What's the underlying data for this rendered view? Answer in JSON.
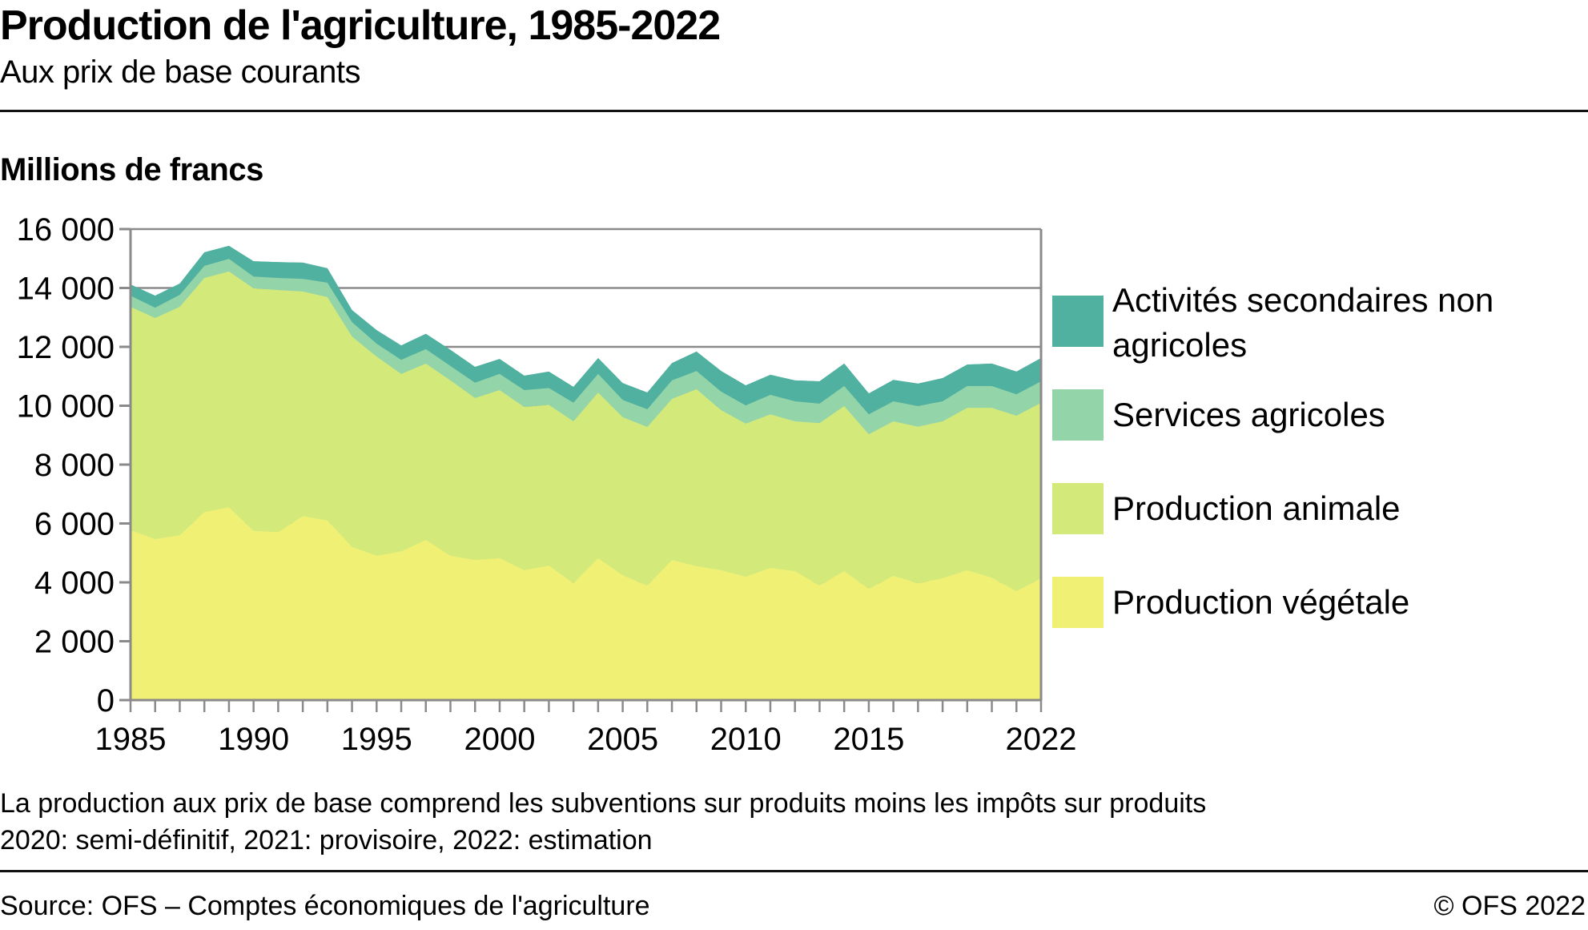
{
  "header": {
    "title": "Production de l'agriculture, 1985-2022",
    "subtitle": "Aux prix de base courants",
    "unit_label": "Millions de francs"
  },
  "footer": {
    "note1": "La production aux prix de base comprend les subventions sur produits moins les impôts sur produits",
    "note2": "2020: semi-définitif, 2021: provisoire, 2022: estimation",
    "source": "Source: OFS – Comptes économiques de l'agriculture",
    "copyright": "© OFS 2022"
  },
  "chart_data": {
    "type": "area",
    "stacked": true,
    "title": "Production de l'agriculture, 1985-2022",
    "subtitle": "Aux prix de base courants",
    "xlabel": "",
    "ylabel": "Millions de francs",
    "ylim": [
      0,
      16000
    ],
    "xlim": [
      1985,
      2022
    ],
    "y_ticks": [
      0,
      2000,
      4000,
      6000,
      8000,
      10000,
      12000,
      14000,
      16000
    ],
    "y_tick_labels": [
      "0",
      "2 000",
      "4 000",
      "6 000",
      "8 000",
      "10 000",
      "12 000",
      "14 000",
      "16 000"
    ],
    "x_tick_labels": [
      "1985",
      "1990",
      "1995",
      "2000",
      "2005",
      "2010",
      "2015",
      "2022"
    ],
    "x_tick_values": [
      1985,
      1990,
      1995,
      2000,
      2005,
      2010,
      2015,
      2022
    ],
    "grid": true,
    "legend_position": "right",
    "x": [
      1985,
      1986,
      1987,
      1988,
      1989,
      1990,
      1991,
      1992,
      1993,
      1994,
      1995,
      1996,
      1997,
      1998,
      1999,
      2000,
      2001,
      2002,
      2003,
      2004,
      2005,
      2006,
      2007,
      2008,
      2009,
      2010,
      2011,
      2012,
      2013,
      2014,
      2015,
      2016,
      2017,
      2018,
      2019,
      2020,
      2021,
      2022
    ],
    "series": [
      {
        "name": "Production végétale",
        "color": "#f0f075",
        "values": [
          5770,
          5470,
          5600,
          6390,
          6550,
          5750,
          5710,
          6250,
          6100,
          5200,
          4900,
          5050,
          5440,
          4900,
          4760,
          4820,
          4410,
          4570,
          3970,
          4820,
          4240,
          3890,
          4760,
          4550,
          4410,
          4190,
          4490,
          4380,
          3890,
          4380,
          3780,
          4220,
          3970,
          4140,
          4410,
          4160,
          3700,
          4140
        ]
      },
      {
        "name": "Production animale",
        "color": "#d3ea7a",
        "values": [
          7590,
          7510,
          7760,
          7950,
          8010,
          8240,
          8220,
          7630,
          7590,
          7150,
          6770,
          6030,
          5990,
          5960,
          5500,
          5710,
          5550,
          5460,
          5500,
          5630,
          5370,
          5390,
          5470,
          6010,
          5440,
          5200,
          5220,
          5090,
          5520,
          5610,
          5250,
          5250,
          5320,
          5330,
          5520,
          5770,
          5960,
          5960
        ]
      },
      {
        "name": "Services agricoles",
        "color": "#93d4a9",
        "values": [
          380,
          350,
          410,
          410,
          430,
          400,
          410,
          430,
          490,
          490,
          440,
          480,
          490,
          490,
          520,
          550,
          570,
          570,
          630,
          630,
          590,
          600,
          630,
          620,
          630,
          620,
          660,
          680,
          660,
          680,
          680,
          680,
          700,
          680,
          740,
          740,
          730,
          730
        ]
      },
      {
        "name": "Activités secondaires non agricoles",
        "color": "#51b1a0",
        "values": [
          380,
          410,
          380,
          460,
          440,
          520,
          540,
          550,
          490,
          410,
          460,
          490,
          520,
          550,
          540,
          510,
          490,
          560,
          540,
          540,
          570,
          570,
          590,
          660,
          700,
          680,
          680,
          710,
          760,
          760,
          710,
          730,
          760,
          790,
          730,
          760,
          770,
          790
        ]
      }
    ]
  },
  "legend": [
    {
      "label": "Activités secondaires non agricoles",
      "color": "#51b1a0"
    },
    {
      "label": "Services agricoles",
      "color": "#93d4a9"
    },
    {
      "label": "Production animale",
      "color": "#d3ea7a"
    },
    {
      "label": "Production végétale",
      "color": "#f0f075"
    }
  ]
}
